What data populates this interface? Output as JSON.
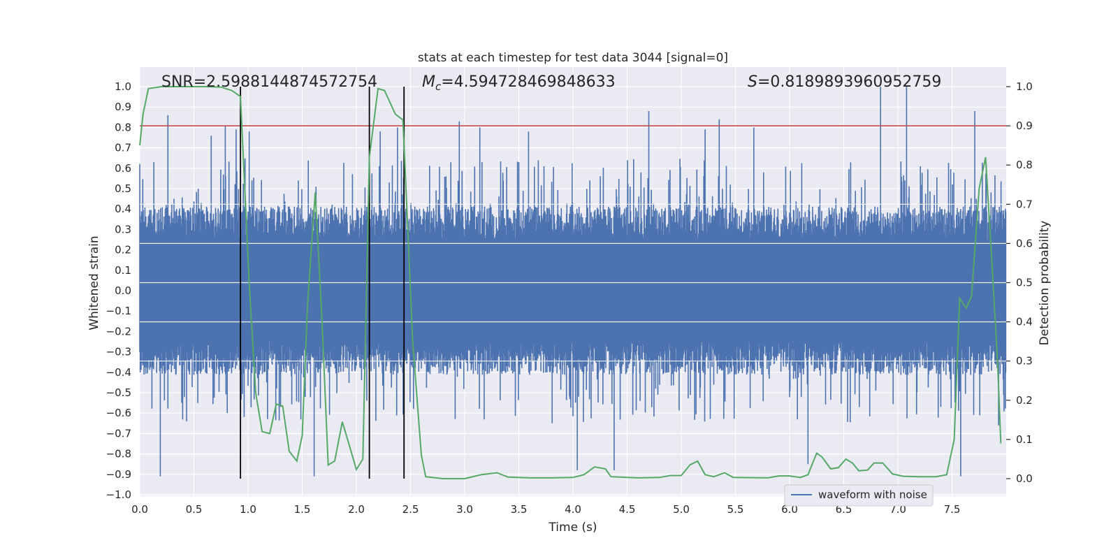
{
  "chart_data": {
    "type": "line",
    "title": "stats at each timestep for test data 3044 [signal=0]",
    "xlabel": "Time (s)",
    "ylabel": "Whitened strain",
    "y2label": "Detection probability",
    "xlim": [
      0.0,
      8.0
    ],
    "ylim": [
      -1.0,
      1.0
    ],
    "y2lim": [
      -0.045,
      1.04
    ],
    "x_ticks": [
      0.0,
      0.5,
      1.0,
      1.5,
      2.0,
      2.5,
      3.0,
      3.5,
      4.0,
      4.5,
      5.0,
      5.5,
      6.0,
      6.5,
      7.0,
      7.5
    ],
    "x_tick_labels": [
      "0.0",
      "0.5",
      "1.0",
      "1.5",
      "2.0",
      "2.5",
      "3.0",
      "3.5",
      "4.0",
      "4.5",
      "5.0",
      "5.5",
      "6.0",
      "6.5",
      "7.0",
      "7.5"
    ],
    "y_ticks": [
      1.0,
      0.9,
      0.8,
      0.7,
      0.6,
      0.5,
      0.4,
      0.3,
      0.2,
      0.1,
      0.0,
      -0.1,
      -0.2,
      -0.3,
      -0.4,
      -0.5,
      -0.6,
      -0.7,
      -0.8,
      -0.9,
      -1.0
    ],
    "y_tick_labels": [
      "1.0",
      "0.9",
      "0.8",
      "0.7",
      "0.6",
      "0.5",
      "0.4",
      "0.3",
      "0.2",
      "0.1",
      "0.0",
      "−0.1",
      "−0.2",
      "−0.3",
      "−0.4",
      "−0.5",
      "−0.6",
      "−0.7",
      "−0.8",
      "−0.9",
      "−1.0"
    ],
    "y2_ticks": [
      1.0,
      0.9,
      0.8,
      0.7,
      0.6,
      0.5,
      0.4,
      0.3,
      0.2,
      0.1,
      0.0
    ],
    "y2_tick_labels": [
      "1.0",
      "0.9",
      "0.8",
      "0.7",
      "0.6",
      "0.5",
      "0.4",
      "0.3",
      "0.2",
      "0.1",
      "0.0"
    ],
    "grid": true,
    "stats": {
      "snr": "SNR=2.5988144874572754",
      "mc_prefix": "M",
      "mc_sub": "c",
      "mc_value": "=4.594728469848633",
      "s_prefix": "S",
      "s_value": "=0.8189893960952759"
    },
    "threshold": {
      "y2": 0.9,
      "color": "#c44e52"
    },
    "event_lines": [
      0.93,
      2.12,
      2.44
    ],
    "waveform": {
      "name": "waveform with noise",
      "color": "#4c72b0",
      "sample_step": 0.004,
      "typical_amplitude": 0.33,
      "peaks": [
        {
          "x": 0.13,
          "y": 0.63
        },
        {
          "x": 0.19,
          "y": -0.91
        },
        {
          "x": 0.26,
          "y": 0.86
        },
        {
          "x": 0.66,
          "y": 0.76
        },
        {
          "x": 0.79,
          "y": 0.81
        },
        {
          "x": 0.89,
          "y": 0.79
        },
        {
          "x": 1.01,
          "y": 0.78
        },
        {
          "x": 1.61,
          "y": -0.91
        },
        {
          "x": 2.22,
          "y": 0.78
        },
        {
          "x": 2.38,
          "y": 0.8
        },
        {
          "x": 2.95,
          "y": 0.83
        },
        {
          "x": 3.14,
          "y": 0.8
        },
        {
          "x": 3.59,
          "y": 0.78
        },
        {
          "x": 4.04,
          "y": -0.88
        },
        {
          "x": 4.38,
          "y": -0.88
        },
        {
          "x": 4.7,
          "y": 0.88
        },
        {
          "x": 5.22,
          "y": 0.79
        },
        {
          "x": 5.35,
          "y": 0.84
        },
        {
          "x": 5.67,
          "y": 0.8
        },
        {
          "x": 6.17,
          "y": -0.85
        },
        {
          "x": 6.84,
          "y": 1.0
        },
        {
          "x": 7.08,
          "y": 1.0
        },
        {
          "x": 7.58,
          "y": -0.91
        },
        {
          "x": 7.71,
          "y": 0.88
        },
        {
          "x": 7.93,
          "y": -0.66
        }
      ]
    },
    "probability": {
      "color": "#55a868",
      "points": [
        [
          0.0,
          0.85
        ],
        [
          0.03,
          0.93
        ],
        [
          0.08,
          0.995
        ],
        [
          0.2,
          1.0
        ],
        [
          0.6,
          1.0
        ],
        [
          0.75,
          0.999
        ],
        [
          0.85,
          0.99
        ],
        [
          0.93,
          0.975
        ],
        [
          1.01,
          0.5
        ],
        [
          1.07,
          0.22
        ],
        [
          1.13,
          0.12
        ],
        [
          1.2,
          0.115
        ],
        [
          1.26,
          0.19
        ],
        [
          1.32,
          0.185
        ],
        [
          1.38,
          0.07
        ],
        [
          1.45,
          0.045
        ],
        [
          1.5,
          0.11
        ],
        [
          1.55,
          0.45
        ],
        [
          1.62,
          0.73
        ],
        [
          1.68,
          0.42
        ],
        [
          1.74,
          0.035
        ],
        [
          1.8,
          0.045
        ],
        [
          1.87,
          0.145
        ],
        [
          1.93,
          0.09
        ],
        [
          2.0,
          0.023
        ],
        [
          2.06,
          0.05
        ],
        [
          2.12,
          0.82
        ],
        [
          2.2,
          0.995
        ],
        [
          2.26,
          0.99
        ],
        [
          2.36,
          0.93
        ],
        [
          2.43,
          0.915
        ],
        [
          2.52,
          0.35
        ],
        [
          2.6,
          0.06
        ],
        [
          2.64,
          0.005
        ],
        [
          2.8,
          0.0
        ],
        [
          3.0,
          0.0
        ],
        [
          3.15,
          0.01
        ],
        [
          3.3,
          0.015
        ],
        [
          3.4,
          0.004
        ],
        [
          3.6,
          0.002
        ],
        [
          3.8,
          0.002
        ],
        [
          4.0,
          0.003
        ],
        [
          4.1,
          0.01
        ],
        [
          4.2,
          0.03
        ],
        [
          4.3,
          0.025
        ],
        [
          4.35,
          0.005
        ],
        [
          4.6,
          0.002
        ],
        [
          4.8,
          0.003
        ],
        [
          4.9,
          0.008
        ],
        [
          5.0,
          0.008
        ],
        [
          5.08,
          0.035
        ],
        [
          5.15,
          0.045
        ],
        [
          5.22,
          0.01
        ],
        [
          5.3,
          0.005
        ],
        [
          5.4,
          0.015
        ],
        [
          5.48,
          0.003
        ],
        [
          5.8,
          0.002
        ],
        [
          5.9,
          0.007
        ],
        [
          6.0,
          0.007
        ],
        [
          6.1,
          0.003
        ],
        [
          6.17,
          0.01
        ],
        [
          6.25,
          0.065
        ],
        [
          6.3,
          0.055
        ],
        [
          6.38,
          0.025
        ],
        [
          6.45,
          0.028
        ],
        [
          6.52,
          0.05
        ],
        [
          6.58,
          0.04
        ],
        [
          6.64,
          0.02
        ],
        [
          6.72,
          0.022
        ],
        [
          6.78,
          0.04
        ],
        [
          6.86,
          0.04
        ],
        [
          6.95,
          0.012
        ],
        [
          7.05,
          0.006
        ],
        [
          7.2,
          0.005
        ],
        [
          7.35,
          0.005
        ],
        [
          7.45,
          0.01
        ],
        [
          7.52,
          0.1
        ],
        [
          7.57,
          0.46
        ],
        [
          7.63,
          0.435
        ],
        [
          7.68,
          0.465
        ],
        [
          7.75,
          0.74
        ],
        [
          7.81,
          0.82
        ],
        [
          7.86,
          0.59
        ],
        [
          7.92,
          0.3
        ],
        [
          7.95,
          0.09
        ]
      ]
    },
    "legend": {
      "entries": [
        "waveform with noise"
      ],
      "location": "lower-right"
    }
  }
}
